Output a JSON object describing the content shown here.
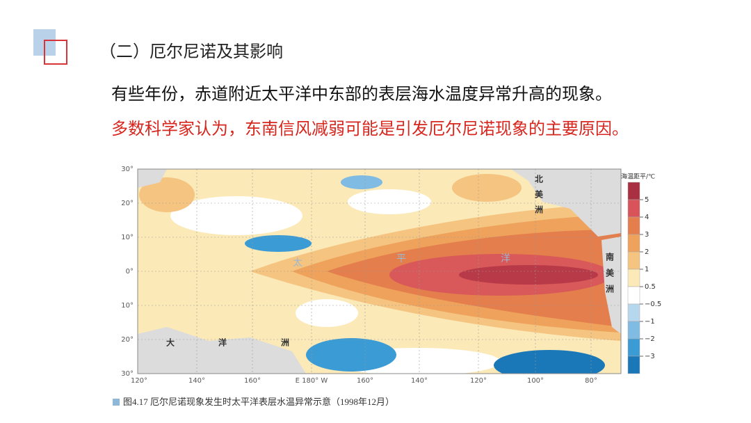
{
  "header": {
    "title": "（二）厄尔尼诺及其影响"
  },
  "body": {
    "lines": [
      "有些年份，赤道附近太平洋中东部的表层海水温度异常升高的现象。",
      "多数科学家认为，东南信风减弱可能是引发厄尔尼诺现象的主要原因。"
    ]
  },
  "map": {
    "lat_labels": [
      "30°",
      "20°",
      "10°",
      "0°",
      "10°",
      "20°",
      "30°"
    ],
    "lon_labels": [
      "120°",
      "140°",
      "160°",
      "E 180° W",
      "160°",
      "140°",
      "120°",
      "100°",
      "80°"
    ],
    "place_labels": [
      "北",
      "美",
      "洲",
      "南",
      "美",
      "洲",
      "大",
      "洋",
      "洲",
      "太",
      "平",
      "洋"
    ],
    "legend": {
      "title": "海温距平/℃",
      "labels": [
        "5",
        "4",
        "3",
        "2",
        "1",
        "0.5",
        "−0.5",
        "−1",
        "−2",
        "−3"
      ]
    },
    "caption": "图4.17  厄尔尼诺现象发生时太平洋表层水温异常示意（1998年12月）"
  }
}
